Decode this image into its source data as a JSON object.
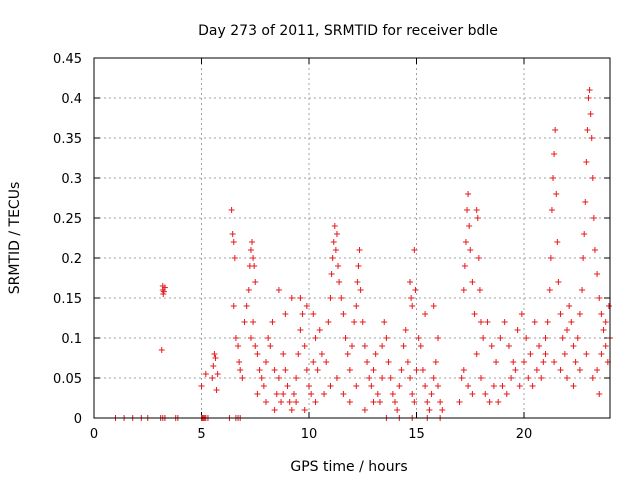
{
  "chart_data": {
    "type": "scatter",
    "title": "Day 273 of 2011, SRMTID for receiver bdle",
    "xlabel": "GPS time / hours",
    "ylabel": "SRMTID / TECUs",
    "xlim": [
      0,
      24
    ],
    "ylim": [
      0,
      0.45
    ],
    "xticks": [
      0,
      5,
      10,
      15,
      20
    ],
    "xtick_labels": [
      "0",
      "5",
      "10",
      "15",
      "20"
    ],
    "yticks": [
      0,
      0.05,
      0.1,
      0.15,
      0.2,
      0.25,
      0.3,
      0.35,
      0.4,
      0.45
    ],
    "ytick_labels": [
      "0",
      "0.05",
      "0.1",
      "0.15",
      "0.2",
      "0.25",
      "0.3",
      "0.35",
      "0.4",
      "0.45"
    ],
    "grid": true,
    "marker": "+",
    "color": "#e41a1c",
    "series": [
      {
        "name": "SRMTID",
        "points": [
          [
            1.0,
            0
          ],
          [
            1.4,
            0
          ],
          [
            1.8,
            0
          ],
          [
            2.2,
            0
          ],
          [
            2.5,
            0
          ],
          [
            3.1,
            0
          ],
          [
            3.2,
            0
          ],
          [
            3.3,
            0
          ],
          [
            3.8,
            0
          ],
          [
            3.9,
            0
          ],
          [
            3.2,
            0.165
          ],
          [
            3.2,
            0.16
          ],
          [
            3.25,
            0.158
          ],
          [
            3.3,
            0.163
          ],
          [
            3.22,
            0.155
          ],
          [
            3.15,
            0.085
          ],
          [
            5.0,
            0
          ],
          [
            5.05,
            0
          ],
          [
            5.1,
            0
          ],
          [
            5.15,
            0
          ],
          [
            5.2,
            0
          ],
          [
            5.3,
            0
          ],
          [
            5.0,
            0.04
          ],
          [
            5.2,
            0.055
          ],
          [
            5.5,
            0.05
          ],
          [
            5.55,
            0.065
          ],
          [
            5.6,
            0.08
          ],
          [
            5.65,
            0.075
          ],
          [
            5.7,
            0.035
          ],
          [
            5.75,
            0.055
          ],
          [
            6.3,
            0
          ],
          [
            6.6,
            0
          ],
          [
            6.7,
            0
          ],
          [
            6.8,
            0
          ],
          [
            6.4,
            0.26
          ],
          [
            6.45,
            0.23
          ],
          [
            6.5,
            0.22
          ],
          [
            6.55,
            0.2
          ],
          [
            6.5,
            0.14
          ],
          [
            6.6,
            0.1
          ],
          [
            6.7,
            0.09
          ],
          [
            6.75,
            0.07
          ],
          [
            6.8,
            0.06
          ],
          [
            6.9,
            0.05
          ],
          [
            7.0,
            0.12
          ],
          [
            7.1,
            0.14
          ],
          [
            7.2,
            0.16
          ],
          [
            7.25,
            0.19
          ],
          [
            7.3,
            0.21
          ],
          [
            7.35,
            0.22
          ],
          [
            7.4,
            0.2
          ],
          [
            7.45,
            0.19
          ],
          [
            7.5,
            0.17
          ],
          [
            7.3,
            0.1
          ],
          [
            7.4,
            0.12
          ],
          [
            7.5,
            0.09
          ],
          [
            7.6,
            0.08
          ],
          [
            7.7,
            0.06
          ],
          [
            7.8,
            0.05
          ],
          [
            7.9,
            0.04
          ],
          [
            8.0,
            0.07
          ],
          [
            8.1,
            0.1
          ],
          [
            8.2,
            0.09
          ],
          [
            8.3,
            0.12
          ],
          [
            8.4,
            0.06
          ],
          [
            8.5,
            0.03
          ],
          [
            8.6,
            0.05
          ],
          [
            8.7,
            0.02
          ],
          [
            8.8,
            0.08
          ],
          [
            8.9,
            0.06
          ],
          [
            9.0,
            0.04
          ],
          [
            9.1,
            0.02
          ],
          [
            9.2,
            0.01
          ],
          [
            9.3,
            0.03
          ],
          [
            9.4,
            0.05
          ],
          [
            9.5,
            0.08
          ],
          [
            9.6,
            0.11
          ],
          [
            9.7,
            0.13
          ],
          [
            9.8,
            0.09
          ],
          [
            9.9,
            0.06
          ],
          [
            10.0,
            0.04
          ],
          [
            10.1,
            0.03
          ],
          [
            10.2,
            0.07
          ],
          [
            10.3,
            0.1
          ],
          [
            10.4,
            0.06
          ],
          [
            8.6,
            0.16
          ],
          [
            8.9,
            0.13
          ],
          [
            9.2,
            0.15
          ],
          [
            9.6,
            0.15
          ],
          [
            9.9,
            0.14
          ],
          [
            10.2,
            0.13
          ],
          [
            10.5,
            0.11
          ],
          [
            10.6,
            0.08
          ],
          [
            7.6,
            0.03
          ],
          [
            8.0,
            0.02
          ],
          [
            8.4,
            0.01
          ],
          [
            8.8,
            0.03
          ],
          [
            9.4,
            0.02
          ],
          [
            9.8,
            0.01
          ],
          [
            10.3,
            0.02
          ],
          [
            10.7,
            0.03
          ],
          [
            10.8,
            0.07
          ],
          [
            10.9,
            0.12
          ],
          [
            11.0,
            0.15
          ],
          [
            11.05,
            0.18
          ],
          [
            11.1,
            0.2
          ],
          [
            11.15,
            0.22
          ],
          [
            11.2,
            0.24
          ],
          [
            11.25,
            0.21
          ],
          [
            11.3,
            0.23
          ],
          [
            11.35,
            0.19
          ],
          [
            11.4,
            0.17
          ],
          [
            11.5,
            0.15
          ],
          [
            11.6,
            0.13
          ],
          [
            11.7,
            0.1
          ],
          [
            11.8,
            0.08
          ],
          [
            11.9,
            0.06
          ],
          [
            12.0,
            0.09
          ],
          [
            12.1,
            0.12
          ],
          [
            12.2,
            0.14
          ],
          [
            12.25,
            0.17
          ],
          [
            12.3,
            0.19
          ],
          [
            12.35,
            0.21
          ],
          [
            12.4,
            0.16
          ],
          [
            12.5,
            0.12
          ],
          [
            12.6,
            0.09
          ],
          [
            12.7,
            0.07
          ],
          [
            12.8,
            0.05
          ],
          [
            12.9,
            0.04
          ],
          [
            13.0,
            0.06
          ],
          [
            13.1,
            0.08
          ],
          [
            13.2,
            0.03
          ],
          [
            13.3,
            0.02
          ],
          [
            11.0,
            0.04
          ],
          [
            11.3,
            0.05
          ],
          [
            11.6,
            0.03
          ],
          [
            11.9,
            0.02
          ],
          [
            12.2,
            0.04
          ],
          [
            12.6,
            0.01
          ],
          [
            13.0,
            0.02
          ],
          [
            13.4,
            0.05
          ],
          [
            13.4,
            0.09
          ],
          [
            13.5,
            0.12
          ],
          [
            13.6,
            0.1
          ],
          [
            13.7,
            0.07
          ],
          [
            13.8,
            0.05
          ],
          [
            13.9,
            0.03
          ],
          [
            14.0,
            0.02
          ],
          [
            14.1,
            0.01
          ],
          [
            14.2,
            0.04
          ],
          [
            14.3,
            0.06
          ],
          [
            14.4,
            0.09
          ],
          [
            14.5,
            0.11
          ],
          [
            14.6,
            0.07
          ],
          [
            14.7,
            0.05
          ],
          [
            14.8,
            0.03
          ],
          [
            14.9,
            0.02
          ],
          [
            15.0,
            0.06
          ],
          [
            15.1,
            0.1
          ],
          [
            15.2,
            0.09
          ],
          [
            15.3,
            0.06
          ],
          [
            15.4,
            0.04
          ],
          [
            15.5,
            0.02
          ],
          [
            15.6,
            0.01
          ],
          [
            15.7,
            0.03
          ],
          [
            15.8,
            0.05
          ],
          [
            15.9,
            0.07
          ],
          [
            16.0,
            0.04
          ],
          [
            16.1,
            0.02
          ],
          [
            16.2,
            0.01
          ],
          [
            15.4,
            0.13
          ],
          [
            15.8,
            0.14
          ],
          [
            16.0,
            0.1
          ],
          [
            14.7,
            0.17
          ],
          [
            14.75,
            0.15
          ],
          [
            14.8,
            0.14
          ],
          [
            14.9,
            0.21
          ],
          [
            14.95,
            0.16
          ],
          [
            13.6,
            0.0
          ],
          [
            14.2,
            0.0
          ],
          [
            14.8,
            0.0
          ],
          [
            15.5,
            0.0
          ],
          [
            16.1,
            0.0
          ],
          [
            17.0,
            0.02
          ],
          [
            17.1,
            0.05
          ],
          [
            17.2,
            0.16
          ],
          [
            17.25,
            0.19
          ],
          [
            17.3,
            0.22
          ],
          [
            17.35,
            0.26
          ],
          [
            17.4,
            0.28
          ],
          [
            17.45,
            0.24
          ],
          [
            17.5,
            0.21
          ],
          [
            17.6,
            0.17
          ],
          [
            17.7,
            0.13
          ],
          [
            17.8,
            0.26
          ],
          [
            17.85,
            0.25
          ],
          [
            17.9,
            0.2
          ],
          [
            17.95,
            0.16
          ],
          [
            18.0,
            0.12
          ],
          [
            17.2,
            0.06
          ],
          [
            17.4,
            0.04
          ],
          [
            17.6,
            0.03
          ],
          [
            17.8,
            0.08
          ],
          [
            18.0,
            0.05
          ],
          [
            18.2,
            0.03
          ],
          [
            18.4,
            0.02
          ],
          [
            18.6,
            0.04
          ],
          [
            18.1,
            0.1
          ],
          [
            18.3,
            0.12
          ],
          [
            18.5,
            0.09
          ],
          [
            18.7,
            0.07
          ],
          [
            18.9,
            0.1
          ],
          [
            19.1,
            0.12
          ],
          [
            19.3,
            0.09
          ],
          [
            19.5,
            0.07
          ],
          [
            18.8,
            0.02
          ],
          [
            19.0,
            0.04
          ],
          [
            19.2,
            0.03
          ],
          [
            19.4,
            0.05
          ],
          [
            19.6,
            0.06
          ],
          [
            19.8,
            0.04
          ],
          [
            20.0,
            0.07
          ],
          [
            20.2,
            0.05
          ],
          [
            19.7,
            0.11
          ],
          [
            19.9,
            0.13
          ],
          [
            20.1,
            0.1
          ],
          [
            20.3,
            0.08
          ],
          [
            20.5,
            0.12
          ],
          [
            20.7,
            0.09
          ],
          [
            20.9,
            0.07
          ],
          [
            21.0,
            0.1
          ],
          [
            20.4,
            0.04
          ],
          [
            20.6,
            0.06
          ],
          [
            20.8,
            0.05
          ],
          [
            21.0,
            0.08
          ],
          [
            21.1,
            0.12
          ],
          [
            21.2,
            0.16
          ],
          [
            21.25,
            0.2
          ],
          [
            21.3,
            0.26
          ],
          [
            21.35,
            0.3
          ],
          [
            21.4,
            0.33
          ],
          [
            21.45,
            0.36
          ],
          [
            21.5,
            0.28
          ],
          [
            21.55,
            0.22
          ],
          [
            21.6,
            0.17
          ],
          [
            21.7,
            0.13
          ],
          [
            21.8,
            0.1
          ],
          [
            21.9,
            0.08
          ],
          [
            22.0,
            0.11
          ],
          [
            22.1,
            0.14
          ],
          [
            22.2,
            0.12
          ],
          [
            22.3,
            0.09
          ],
          [
            22.4,
            0.07
          ],
          [
            22.5,
            0.1
          ],
          [
            22.6,
            0.13
          ],
          [
            22.7,
            0.16
          ],
          [
            22.75,
            0.2
          ],
          [
            22.8,
            0.23
          ],
          [
            22.85,
            0.27
          ],
          [
            22.9,
            0.32
          ],
          [
            22.95,
            0.36
          ],
          [
            23.0,
            0.4
          ],
          [
            23.05,
            0.41
          ],
          [
            23.1,
            0.38
          ],
          [
            23.15,
            0.35
          ],
          [
            23.2,
            0.3
          ],
          [
            23.25,
            0.25
          ],
          [
            23.3,
            0.21
          ],
          [
            23.4,
            0.18
          ],
          [
            23.5,
            0.15
          ],
          [
            23.6,
            0.13
          ],
          [
            23.7,
            0.11
          ],
          [
            23.8,
            0.09
          ],
          [
            23.9,
            0.07
          ],
          [
            24.0,
            0.1
          ],
          [
            23.4,
            0.06
          ],
          [
            23.6,
            0.08
          ],
          [
            23.8,
            0.12
          ],
          [
            23.95,
            0.14
          ],
          [
            22.0,
            0.05
          ],
          [
            22.3,
            0.04
          ],
          [
            22.6,
            0.06
          ],
          [
            22.9,
            0.08
          ],
          [
            23.2,
            0.05
          ],
          [
            23.5,
            0.03
          ],
          [
            21.4,
            0.07
          ],
          [
            21.7,
            0.06
          ]
        ]
      }
    ]
  }
}
